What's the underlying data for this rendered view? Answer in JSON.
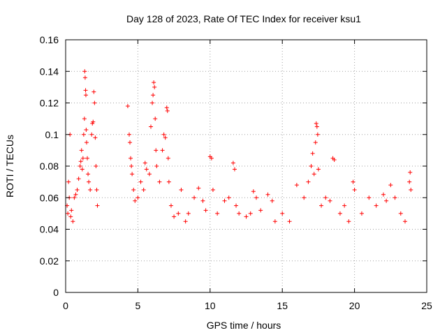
{
  "chart_data": {
    "type": "scatter",
    "title": "Day 128 of 2023, Rate Of TEC Index for receiver ksu1",
    "xlabel": "GPS time / hours",
    "ylabel": "ROTI / TECUs",
    "xlim": [
      0,
      25
    ],
    "ylim": [
      0,
      0.16
    ],
    "xticks": [
      "0",
      "5",
      "10",
      "15",
      "20",
      "25"
    ],
    "yticks": [
      "0",
      "0.02",
      "0.04",
      "0.06",
      "0.08",
      "0.1",
      "0.12",
      "0.14",
      "0.16"
    ],
    "grid": true,
    "marker": "plus",
    "color": "#ff0000",
    "series": [
      {
        "points": [
          [
            0.1,
            0.055
          ],
          [
            0.15,
            0.05
          ],
          [
            0.2,
            0.07
          ],
          [
            0.25,
            0.06
          ],
          [
            0.3,
            0.1
          ],
          [
            0.35,
            0.048
          ],
          [
            0.4,
            0.052
          ],
          [
            0.5,
            0.045
          ],
          [
            0.6,
            0.06
          ],
          [
            0.7,
            0.062
          ],
          [
            0.8,
            0.065
          ],
          [
            0.9,
            0.072
          ],
          [
            1.0,
            0.08
          ],
          [
            1.05,
            0.083
          ],
          [
            1.1,
            0.09
          ],
          [
            1.15,
            0.078
          ],
          [
            1.2,
            0.085
          ],
          [
            1.25,
            0.1
          ],
          [
            1.3,
            0.11
          ],
          [
            1.32,
            0.14
          ],
          [
            1.35,
            0.136
          ],
          [
            1.38,
            0.128
          ],
          [
            1.4,
            0.125
          ],
          [
            1.42,
            0.103
          ],
          [
            1.45,
            0.095
          ],
          [
            1.5,
            0.085
          ],
          [
            1.55,
            0.075
          ],
          [
            1.6,
            0.07
          ],
          [
            1.7,
            0.065
          ],
          [
            1.8,
            0.1
          ],
          [
            1.85,
            0.107
          ],
          [
            1.9,
            0.108
          ],
          [
            1.95,
            0.127
          ],
          [
            2.0,
            0.12
          ],
          [
            2.05,
            0.098
          ],
          [
            2.1,
            0.08
          ],
          [
            2.15,
            0.065
          ],
          [
            2.2,
            0.055
          ],
          [
            4.3,
            0.118
          ],
          [
            4.4,
            0.1
          ],
          [
            4.45,
            0.095
          ],
          [
            4.5,
            0.085
          ],
          [
            4.55,
            0.08
          ],
          [
            4.6,
            0.075
          ],
          [
            4.7,
            0.065
          ],
          [
            4.8,
            0.058
          ],
          [
            5.0,
            0.06
          ],
          [
            5.2,
            0.07
          ],
          [
            5.4,
            0.065
          ],
          [
            5.5,
            0.082
          ],
          [
            5.6,
            0.078
          ],
          [
            5.8,
            0.075
          ],
          [
            5.9,
            0.105
          ],
          [
            6.0,
            0.12
          ],
          [
            6.05,
            0.125
          ],
          [
            6.1,
            0.133
          ],
          [
            6.15,
            0.13
          ],
          [
            6.2,
            0.11
          ],
          [
            6.25,
            0.09
          ],
          [
            6.3,
            0.08
          ],
          [
            6.5,
            0.07
          ],
          [
            6.7,
            0.09
          ],
          [
            6.8,
            0.1
          ],
          [
            6.9,
            0.098
          ],
          [
            7.0,
            0.117
          ],
          [
            7.05,
            0.115
          ],
          [
            7.1,
            0.085
          ],
          [
            7.15,
            0.07
          ],
          [
            7.3,
            0.055
          ],
          [
            7.5,
            0.048
          ],
          [
            7.8,
            0.05
          ],
          [
            8.0,
            0.065
          ],
          [
            8.3,
            0.045
          ],
          [
            8.5,
            0.05
          ],
          [
            8.9,
            0.06
          ],
          [
            9.2,
            0.066
          ],
          [
            9.5,
            0.058
          ],
          [
            9.7,
            0.052
          ],
          [
            10.0,
            0.086
          ],
          [
            10.1,
            0.085
          ],
          [
            10.2,
            0.065
          ],
          [
            10.5,
            0.05
          ],
          [
            11.0,
            0.058
          ],
          [
            11.3,
            0.06
          ],
          [
            11.6,
            0.082
          ],
          [
            11.7,
            0.078
          ],
          [
            11.8,
            0.055
          ],
          [
            12.0,
            0.05
          ],
          [
            12.5,
            0.048
          ],
          [
            12.8,
            0.05
          ],
          [
            13.0,
            0.064
          ],
          [
            13.2,
            0.06
          ],
          [
            13.5,
            0.052
          ],
          [
            14.0,
            0.062
          ],
          [
            14.3,
            0.058
          ],
          [
            14.5,
            0.045
          ],
          [
            15.0,
            0.05
          ],
          [
            15.5,
            0.045
          ],
          [
            16.0,
            0.068
          ],
          [
            16.5,
            0.06
          ],
          [
            16.8,
            0.07
          ],
          [
            17.0,
            0.08
          ],
          [
            17.1,
            0.088
          ],
          [
            17.2,
            0.075
          ],
          [
            17.3,
            0.095
          ],
          [
            17.35,
            0.107
          ],
          [
            17.4,
            0.105
          ],
          [
            17.45,
            0.1
          ],
          [
            17.5,
            0.078
          ],
          [
            17.7,
            0.055
          ],
          [
            18.0,
            0.06
          ],
          [
            18.3,
            0.058
          ],
          [
            18.5,
            0.085
          ],
          [
            18.6,
            0.084
          ],
          [
            19.0,
            0.05
          ],
          [
            19.3,
            0.055
          ],
          [
            19.6,
            0.045
          ],
          [
            19.9,
            0.07
          ],
          [
            20.0,
            0.065
          ],
          [
            20.5,
            0.05
          ],
          [
            21.0,
            0.06
          ],
          [
            21.5,
            0.055
          ],
          [
            22.0,
            0.062
          ],
          [
            22.2,
            0.058
          ],
          [
            22.5,
            0.068
          ],
          [
            22.8,
            0.06
          ],
          [
            23.2,
            0.05
          ],
          [
            23.5,
            0.045
          ],
          [
            23.8,
            0.07
          ],
          [
            23.85,
            0.076
          ],
          [
            23.9,
            0.065
          ]
        ]
      }
    ]
  }
}
